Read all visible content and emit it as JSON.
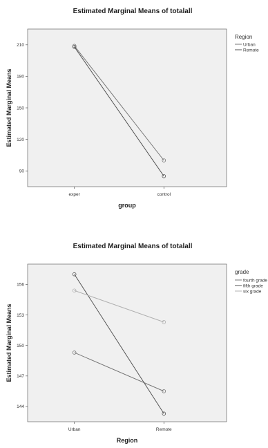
{
  "chart_data": [
    {
      "type": "line",
      "title": "Estimated Marginal Means of totalall",
      "xlabel": "group",
      "ylabel": "Estimated Marginal Means",
      "categories": [
        "exper",
        "control"
      ],
      "ylim": [
        75,
        225
      ],
      "yticks": [
        "90",
        "120",
        "150",
        "180",
        "210"
      ],
      "legend_title": "Region",
      "legend_position": "right",
      "series": [
        {
          "name": "Urban",
          "values": [
            209,
            100
          ],
          "color": "#777777"
        },
        {
          "name": "Remote",
          "values": [
            208,
            85
          ],
          "color": "#555555"
        }
      ]
    },
    {
      "type": "line",
      "title": "Estimated Marginal Means of totalall",
      "xlabel": "Region",
      "ylabel": "Estimated Marginal Means",
      "categories": [
        "Urban",
        "Remote"
      ],
      "ylim": [
        142.5,
        158
      ],
      "yticks": [
        "144",
        "147",
        "150",
        "153",
        "156"
      ],
      "legend_title": "grade",
      "legend_position": "right",
      "series": [
        {
          "name": "fourth grade",
          "values": [
            149.3,
            145.5
          ],
          "color": "#777777"
        },
        {
          "name": "fifth grade",
          "values": [
            157,
            143.3
          ],
          "color": "#555555"
        },
        {
          "name": "six grade",
          "values": [
            155.4,
            152.3
          ],
          "color": "#b0b0b0"
        }
      ]
    }
  ]
}
